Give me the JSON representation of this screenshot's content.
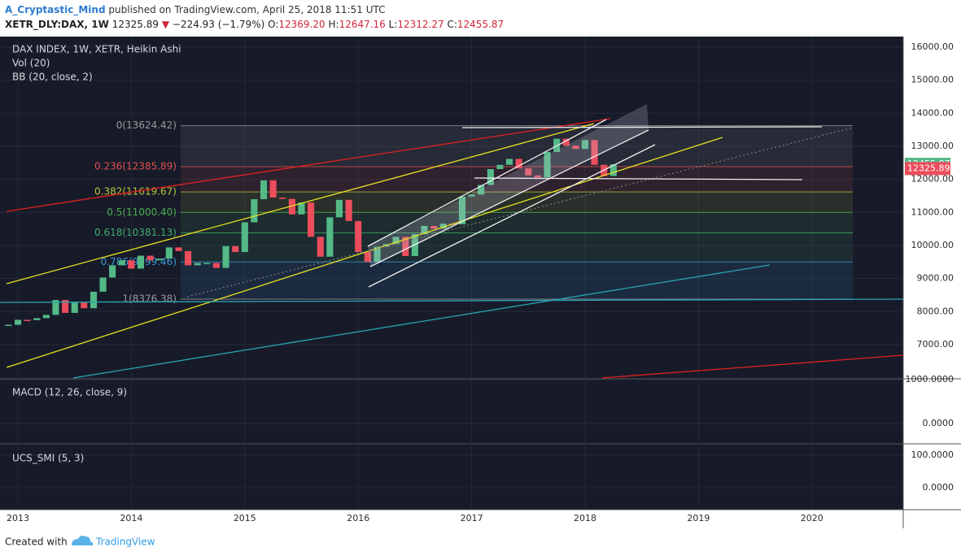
{
  "header": {
    "author": "A_Cryptastic_Mind",
    "published": "published on TradingView.com, April 25, 2018 11:51 UTC",
    "symbol": "XETR_DLY:DAX, 1W",
    "last": "12325.89",
    "arrow": "▼",
    "change": "−224.93 (−1.79%)",
    "o_label": "O:",
    "o": "12369.20",
    "h_label": "H:",
    "h": "12647.16",
    "l_label": "L:",
    "l": "12312.27",
    "c_label": "C:",
    "c": "12455.87"
  },
  "chart_data": {
    "type": "heikin_ashi",
    "title": "DAX INDEX, 1W, XETR, Heikin Ashi",
    "studies": [
      "Vol (20)",
      "BB (20, close, 2)"
    ],
    "x": [
      2012.917,
      2013.0,
      2013.083,
      2013.167,
      2013.25,
      2013.333,
      2013.417,
      2013.5,
      2013.583,
      2013.667,
      2013.75,
      2013.833,
      2013.917,
      2014.0,
      2014.083,
      2014.167,
      2014.25,
      2014.333,
      2014.417,
      2014.5,
      2014.583,
      2014.667,
      2014.75,
      2014.833,
      2014.917,
      2015.0,
      2015.083,
      2015.167,
      2015.25,
      2015.333,
      2015.417,
      2015.5,
      2015.583,
      2015.667,
      2015.75,
      2015.833,
      2015.917,
      2016.0,
      2016.083,
      2016.167,
      2016.25,
      2016.333,
      2016.417,
      2016.5,
      2016.583,
      2016.667,
      2016.75,
      2016.833,
      2016.917,
      2017.0,
      2017.083,
      2017.167,
      2017.25,
      2017.333,
      2017.417,
      2017.5,
      2017.583,
      2017.667,
      2017.75,
      2017.833,
      2017.917,
      2018.0,
      2018.083,
      2018.167,
      2018.25
    ],
    "values": [
      7600,
      7750,
      7740,
      7800,
      7900,
      8350,
      7960,
      8270,
      8100,
      8600,
      9030,
      9400,
      9550,
      9300,
      9690,
      9550,
      9600,
      9940,
      9830,
      9400,
      9470,
      9470,
      9320,
      9980,
      9800,
      10700,
      11400,
      11970,
      11450,
      11410,
      10940,
      11300,
      10260,
      9660,
      10850,
      11380,
      10740,
      9800,
      9500,
      9960,
      10040,
      10260,
      9680,
      10340,
      10590,
      10510,
      10660,
      10640,
      11480,
      11540,
      11830,
      12310,
      12440,
      12620,
      12330,
      12120,
      12060,
      12830,
      13230,
      13020,
      12920,
      13190,
      12440,
      12100,
      12456
    ],
    "up_color": "#53b987",
    "down_color": "#eb4d5c",
    "xlim": [
      2012.842,
      2020.805
    ],
    "xticks": [
      2013,
      2014,
      2015,
      2016,
      2017,
      2018,
      2019,
      2020
    ],
    "ylim": [
      5990,
      16320
    ],
    "yticks": [
      {
        "value": 7000,
        "label": "7000.00"
      },
      {
        "value": 8000,
        "label": "8000.00"
      },
      {
        "value": 9000,
        "label": "9000.00"
      },
      {
        "value": 10000,
        "label": "10000.00"
      },
      {
        "value": 11000,
        "label": "11000.00"
      },
      {
        "value": 12000,
        "label": "12000.00"
      },
      {
        "value": 13000,
        "label": "13000.00"
      },
      {
        "value": 14000,
        "label": "14000.00"
      },
      {
        "value": 15000,
        "label": "15000.00"
      },
      {
        "value": 16000,
        "label": "16000.00"
      }
    ],
    "grid": true,
    "fib_levels": [
      {
        "value": 13624.42,
        "label": "0(13624.42)",
        "color": "#9a9a9a"
      },
      {
        "value": 12385.89,
        "label": "0.236(12385.89)",
        "color": "#e05050"
      },
      {
        "value": 11619.67,
        "label": "0.382(11619.67)",
        "color": "#b8c23a"
      },
      {
        "value": 11000.4,
        "label": "0.5(11000.40)",
        "color": "#4caf50"
      },
      {
        "value": 10381.13,
        "label": "0.618(10381.13)",
        "color": "#3fae6a"
      },
      {
        "value": 9499.46,
        "label": "0.786(9499.46)",
        "color": "#3a9ad9"
      },
      {
        "value": 8376.38,
        "label": "1(8376.38)",
        "color": "#9a9a9a"
      }
    ],
    "price_labels": [
      {
        "value": 12455.87,
        "label": "12455.87",
        "color": "#53b987"
      },
      {
        "value": 12325.89,
        "label": "12325.89",
        "color": "#eb4d5c"
      }
    ]
  },
  "macd": {
    "title": "MACD (12, 26, close, 9)",
    "ylim": [
      -444,
      981
    ],
    "yticks": [
      {
        "value": 1000,
        "label": "1000.0000"
      },
      {
        "value": 0,
        "label": "0.0000"
      }
    ]
  },
  "smi": {
    "title": "UCS_SMI (5, 3)",
    "ylim": [
      -62,
      130
    ],
    "yticks": [
      {
        "value": 100,
        "label": "100.0000"
      },
      {
        "value": 0,
        "label": "0.0000"
      }
    ]
  },
  "footer": {
    "created": "Created with",
    "brand": "TradingView"
  }
}
